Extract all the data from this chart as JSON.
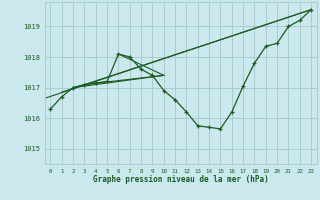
{
  "background_color": "#cce8ef",
  "grid_color": "#aacccc",
  "line_color": "#1a5c20",
  "marker_color": "#1a5c20",
  "text_color": "#1a5c20",
  "xlabel": "Graphe pression niveau de la mer (hPa)",
  "ylim": [
    1014.5,
    1019.8
  ],
  "xlim": [
    -0.5,
    23.5
  ],
  "yticks": [
    1015,
    1016,
    1017,
    1018,
    1019
  ],
  "xticks": [
    0,
    1,
    2,
    3,
    4,
    5,
    6,
    7,
    8,
    9,
    10,
    11,
    12,
    13,
    14,
    15,
    16,
    17,
    18,
    19,
    20,
    21,
    22,
    23
  ],
  "main_series": [
    1016.3,
    1016.7,
    1017.0,
    1017.1,
    1017.15,
    1017.2,
    1018.1,
    1018.0,
    1017.6,
    1017.4,
    1016.9,
    1016.6,
    1016.2,
    1015.75,
    1015.7,
    1015.65,
    1016.2,
    1017.05,
    1017.8,
    1018.35,
    1018.45,
    1019.0,
    1019.2,
    1019.55
  ],
  "extra_lines": [
    {
      "x": [
        -0.5,
        23
      ],
      "y": [
        1016.65,
        1019.55
      ]
    },
    {
      "x": [
        1,
        23
      ],
      "y": [
        1016.85,
        1019.55
      ]
    },
    {
      "x": [
        2,
        10
      ],
      "y": [
        1017.0,
        1017.4
      ]
    },
    {
      "x": [
        3,
        10
      ],
      "y": [
        1017.1,
        1017.4
      ]
    },
    {
      "x": [
        6,
        10
      ],
      "y": [
        1018.1,
        1017.4
      ]
    }
  ]
}
